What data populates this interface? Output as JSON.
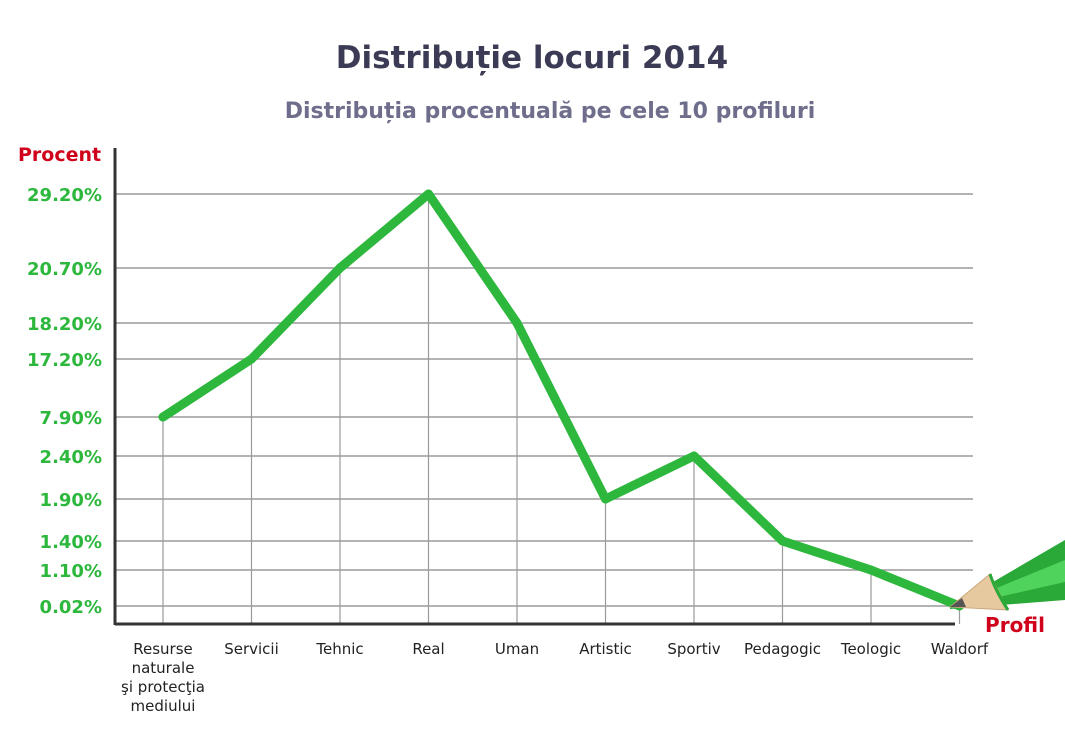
{
  "chart_data": {
    "type": "line",
    "title": "Distribuție locuri 2014",
    "subtitle": "Distribuția procentuală pe cele 10 profiluri",
    "ylabel": "Procent",
    "xlabel": "Profil",
    "categories": [
      [
        "Resurse",
        "naturale",
        "şi protecţia",
        "mediului"
      ],
      [
        "Servicii"
      ],
      [
        "Tehnic"
      ],
      [
        "Real"
      ],
      [
        "Uman"
      ],
      [
        "Artistic"
      ],
      [
        "Sportiv"
      ],
      [
        "Pedagogic"
      ],
      [
        "Teologic"
      ],
      [
        "Waldorf"
      ]
    ],
    "values": [
      7.9,
      17.2,
      20.7,
      29.2,
      18.2,
      1.9,
      2.4,
      1.4,
      1.1,
      0.02
    ],
    "yticks": [
      "29.20%",
      "20.70%",
      "18.20%",
      "17.20%",
      "7.90%",
      "2.40%",
      "1.90%",
      "1.40%",
      "1.10%",
      "0.02%"
    ],
    "grid": true,
    "colors": {
      "line": "#2db83d",
      "tick_text": "#2db83d",
      "axis_label": "#d0021b",
      "title": "#3b3b55",
      "subtitle": "#6e6e8c",
      "grid": "#9a9a9a",
      "axis": "#333333",
      "pencil_body": "#3cbf48",
      "pencil_wood": "#e7c9a0"
    },
    "decoration_icon": "pencil-icon"
  }
}
